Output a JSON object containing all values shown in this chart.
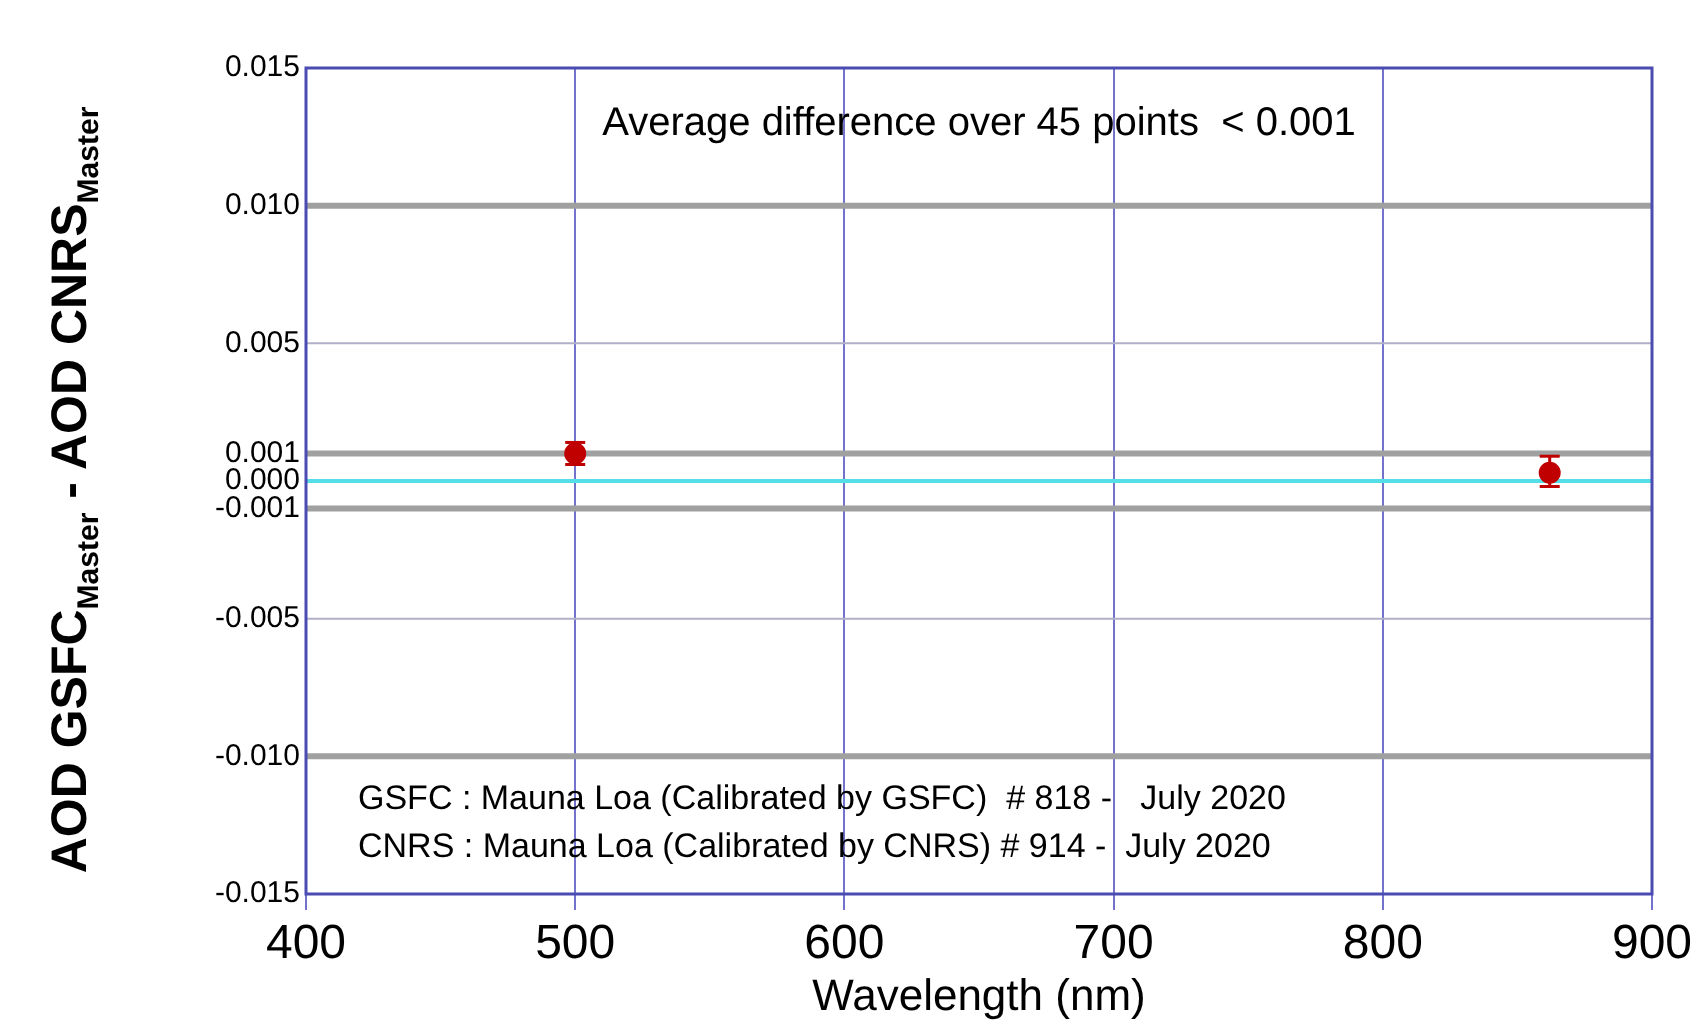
{
  "chart_data": {
    "type": "scatter",
    "xlabel": "Wavelength (nm)",
    "ylabel": "AOD GSFC$_{Master}$  -  AOD CNRS$_{Master}$",
    "x": [
      500,
      862
    ],
    "series": [
      {
        "color": "#c00000",
        "values": [
          0.001,
          0.0003
        ],
        "errors": [
          0.0004,
          [
            -0.0002,
            0.0009
          ]
        ]
      }
    ],
    "xlim": [
      400,
      900
    ],
    "xticks": [
      400,
      500,
      600,
      700,
      800,
      900
    ],
    "ylim": [
      -0.015,
      0.015
    ],
    "yticks": [
      {
        "value": 0.015,
        "label": "0.015"
      },
      {
        "value": 0.01,
        "label": "0.010"
      },
      {
        "value": 0.005,
        "label": "0.005"
      },
      {
        "value": 0.001,
        "label": "0.001"
      },
      {
        "value": 0,
        "label": "0.000"
      },
      {
        "value": -0.001,
        "label": "-0.001"
      },
      {
        "value": -0.005,
        "label": "-0.005"
      },
      {
        "value": -0.01,
        "label": "-0.010"
      },
      {
        "value": -0.015,
        "label": "-0.015"
      }
    ],
    "ref_lines": [
      {
        "axis": "y",
        "value": 0.01,
        "color": "#a0a0a0"
      },
      {
        "axis": "y",
        "value": 0.001,
        "color": "#a0a0a0"
      },
      {
        "axis": "y",
        "value": -0.001,
        "color": "#a0a0a0"
      },
      {
        "axis": "y",
        "value": -0.01,
        "color": "#a0a0a0"
      },
      {
        "axis": "y",
        "value": 0,
        "color": "#55dde8"
      },
      {
        "axis": "y",
        "value": 0.005,
        "color": "#b0b0c8"
      },
      {
        "axis": "y",
        "value": -0.005,
        "color": "#b0b0c8"
      }
    ],
    "annotations": [
      "Average difference over 45 points  < 0.001",
      "GSFC : Mauna Loa (Calibrated by GSFC)  # 818 -   July 2020",
      "CNRS : Mauna Loa (Calibrated by CNRS) # 914 -  July 2020"
    ],
    "grid": "x",
    "legend": false,
    "marker": "circle"
  }
}
